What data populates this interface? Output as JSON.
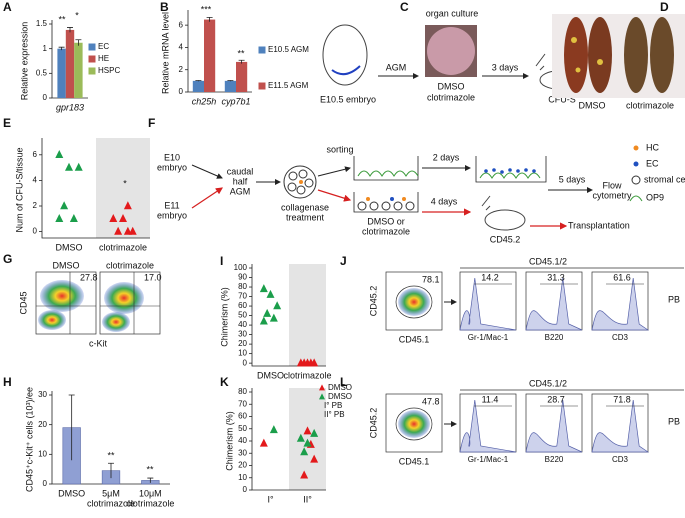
{
  "panel_labels": [
    "A",
    "B",
    "C",
    "D",
    "E",
    "F",
    "G",
    "H",
    "I",
    "J",
    "K",
    "L"
  ],
  "chart_data": [
    {
      "type": "bar",
      "ylabel": "Relative expression",
      "categories": [
        "gpr183"
      ],
      "italic_categories": true,
      "series": [
        {
          "name": "EC",
          "color": "#4f81bd",
          "values": [
            1.0
          ],
          "errors": [
            0.03
          ]
        },
        {
          "name": "HE",
          "color": "#c0504d",
          "values": [
            1.38
          ],
          "errors": [
            0.05
          ]
        },
        {
          "name": "HSPC",
          "color": "#9bbb59",
          "values": [
            1.12
          ],
          "errors": [
            0.06
          ]
        }
      ],
      "ylim": [
        0,
        1.5
      ],
      "yticks": [
        0,
        0.5,
        1,
        1.5
      ],
      "annotations": [
        "**",
        "*"
      ]
    },
    {
      "type": "bar",
      "ylabel": "Relative mRNA level",
      "categories": [
        "ch25h",
        "cyp7b1"
      ],
      "italic_categories": true,
      "series": [
        {
          "name": "E10.5 AGM",
          "color": "#4f81bd",
          "values": [
            1,
            1
          ],
          "errors": [
            0.03,
            0.03
          ]
        },
        {
          "name": "E11.5 AGM",
          "color": "#c0504d",
          "values": [
            6.5,
            2.7
          ],
          "errors": [
            0.2,
            0.15
          ]
        }
      ],
      "ylim": [
        0,
        7
      ],
      "yticks": [
        0,
        2,
        4,
        6
      ],
      "annotations": [
        "***",
        "**"
      ]
    },
    {
      "type": "scatter",
      "ylabel": "Num of CFU-S/tissue",
      "categories": [
        "DMSO",
        "clotrimazole"
      ],
      "shaded": 1,
      "series": [
        {
          "color": "#1b9e4b",
          "values": [
            6,
            5,
            5,
            2,
            1,
            1
          ]
        },
        {
          "color": "#e31a1c",
          "values": [
            2,
            1,
            1,
            0,
            0,
            0
          ]
        }
      ],
      "ylim": [
        -0.5,
        7
      ],
      "yticks": [
        0,
        2,
        4,
        6
      ],
      "annotations": [
        "*"
      ]
    },
    {
      "type": "bar",
      "ylabel": "CD45⁺c-Kit⁺ cells (10³)/ee",
      "categories": [
        [
          "DMSO"
        ],
        [
          "5μM",
          "clotrimazole"
        ],
        [
          "10μM",
          "clotrimazole"
        ]
      ],
      "series": [
        {
          "color": "#8f9fd3",
          "values": [
            19,
            4.5,
            1.2
          ],
          "errors": [
            11,
            2.5,
            0.8
          ]
        }
      ],
      "ylim": [
        0,
        30
      ],
      "yticks": [
        0,
        10,
        20,
        30
      ],
      "annotations": [
        "**",
        "**"
      ]
    },
    {
      "type": "scatter",
      "ylabel": "Chimerism (%)",
      "categories": [
        "DMSO",
        "clotrimazole"
      ],
      "shaded": 1,
      "series": [
        {
          "color": "#1b9e4b",
          "values": [
            78,
            72,
            60,
            52,
            47,
            44
          ]
        },
        {
          "color": "#e31a1c",
          "values": [
            0,
            0,
            0,
            0,
            0
          ]
        }
      ],
      "ylim": [
        -3,
        100
      ],
      "yticks": [
        0,
        10,
        20,
        30,
        40,
        50,
        60,
        70,
        80,
        90,
        100
      ]
    },
    {
      "type": "scatter",
      "ylabel": "Chimerism (%)",
      "categories": [
        "I°",
        "II°"
      ],
      "shaded": 1,
      "series": [
        {
          "name": "DMSO",
          "color": "#e31a1c",
          "x": [
            "I°",
            "II°",
            "II°",
            "II°",
            "II°"
          ],
          "values": [
            38,
            48,
            25,
            12,
            37
          ]
        },
        {
          "name": "DMSO",
          "color": "#1b9e4b",
          "x": [
            "I°",
            "II°",
            "II°",
            "II°",
            "II°"
          ],
          "values": [
            49,
            42,
            38,
            46,
            31
          ]
        }
      ],
      "legend_notes": [
        "I° PB",
        "II° PB"
      ],
      "ylim": [
        0,
        80
      ],
      "yticks": [
        0,
        10,
        20,
        30,
        40,
        50,
        60,
        70,
        80
      ]
    }
  ],
  "diagram_c": {
    "embryo": "E10.5 embryo",
    "step1": "AGM",
    "culture": "organ culture",
    "conditions": [
      "DMSO",
      "clotrimazole"
    ],
    "step2": "3 days",
    "readout": "CFU-S"
  },
  "photo_d": {
    "labels": [
      "DMSO",
      "clotrimazole"
    ]
  },
  "diagram_f": {
    "sources": [
      [
        "E10",
        "embryo"
      ],
      [
        "E11",
        "embryo"
      ]
    ],
    "tissue": [
      "caudal",
      "half",
      "AGM"
    ],
    "treatment": [
      "collagenase",
      "treatment"
    ],
    "sorting": "sorting",
    "culture_time": "2 days",
    "flow_time": "5 days",
    "readout_flow": [
      "Flow",
      "cytometry"
    ],
    "transplant_time": "4 days",
    "drug": [
      "DMSO or",
      "clotrimazole"
    ],
    "recipient": "CD45.2",
    "readout_transplant": "Transplantation",
    "legend": [
      "HC",
      "EC",
      "stromal cells",
      "OP9"
    ]
  },
  "flow_g": {
    "conditions": [
      "DMSO",
      "clotrimazole"
    ],
    "gates": [
      "27.8",
      "17.0"
    ],
    "yaxis": "CD45",
    "xaxis": "c-Kit"
  },
  "flow_j": {
    "gate": "78.1",
    "yaxis": "CD45.2",
    "xaxis": "CD45.1",
    "header": "CD45.1/2",
    "tissue": "PB",
    "histograms": [
      {
        "label": "Gr-1/Mac-1",
        "gate": "14.2"
      },
      {
        "label": "B220",
        "gate": "31.3"
      },
      {
        "label": "CD3",
        "gate": "61.6"
      }
    ]
  },
  "flow_l": {
    "gate": "47.8",
    "yaxis": "CD45.2",
    "xaxis": "CD45.1",
    "header": "CD45.1/2",
    "tissue": "PB",
    "histograms": [
      {
        "label": "Gr-1/Mac-1",
        "gate": "11.4"
      },
      {
        "label": "B220",
        "gate": "28.7"
      },
      {
        "label": "CD3",
        "gate": "71.8"
      }
    ]
  }
}
